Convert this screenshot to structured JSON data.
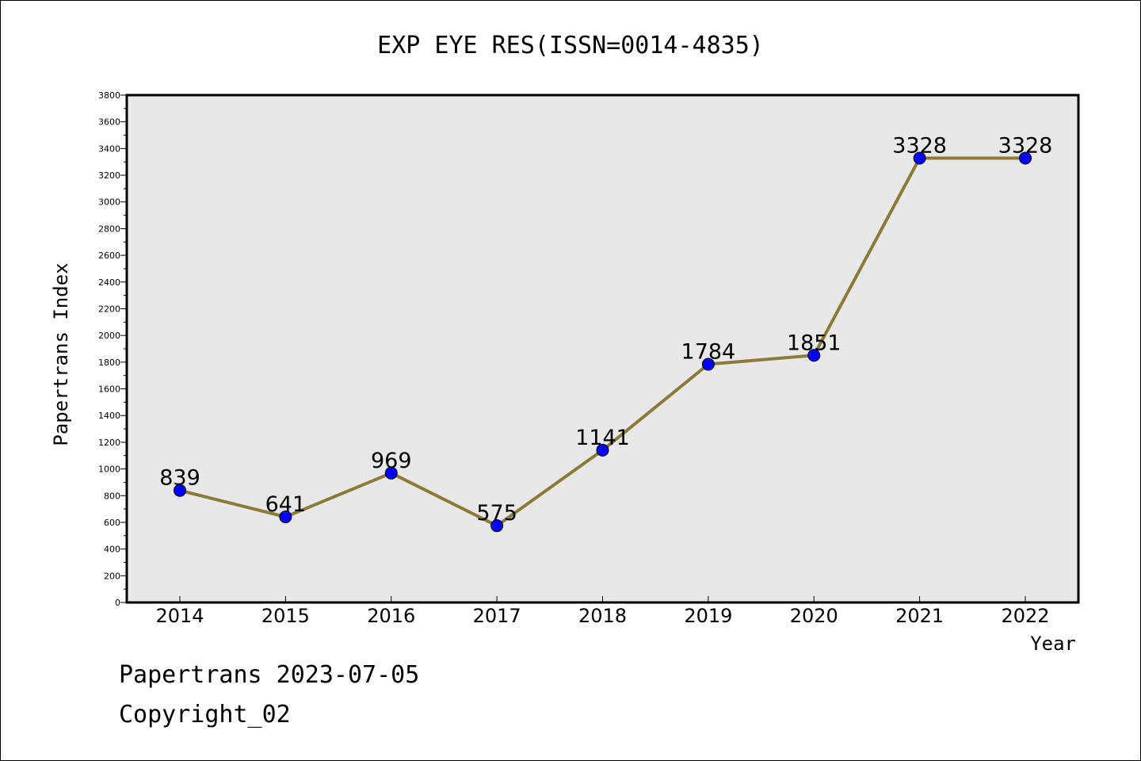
{
  "chart_data": {
    "type": "line",
    "title": "EXP EYE RES(ISSN=0014-4835)",
    "xlabel": "Year",
    "ylabel": "Papertrans Index",
    "categories": [
      "2014",
      "2015",
      "2016",
      "2017",
      "2018",
      "2019",
      "2020",
      "2021",
      "2022"
    ],
    "series": [
      {
        "values": [
          839,
          641,
          969,
          575,
          1141,
          1784,
          1851,
          3328,
          3328
        ]
      }
    ],
    "data_labels": [
      "839",
      "641",
      "969",
      "575",
      "1141",
      "1784",
      "1851",
      "3328",
      "3328"
    ],
    "ylim": [
      0,
      3800
    ],
    "yticks": [
      "0",
      "200",
      "400",
      "600",
      "800",
      "1000",
      "1200",
      "1400",
      "1600",
      "1800",
      "2000",
      "2200",
      "2400",
      "2600",
      "2800",
      "3000",
      "3200",
      "3400",
      "3600",
      "3800"
    ],
    "grid": false,
    "line_color": "#8b7a3a",
    "marker_color": "#0000ff",
    "plot_background": "#e8e8e8"
  },
  "footer": {
    "line1": "Papertrans 2023-07-05",
    "line2": "Copyright_02"
  }
}
